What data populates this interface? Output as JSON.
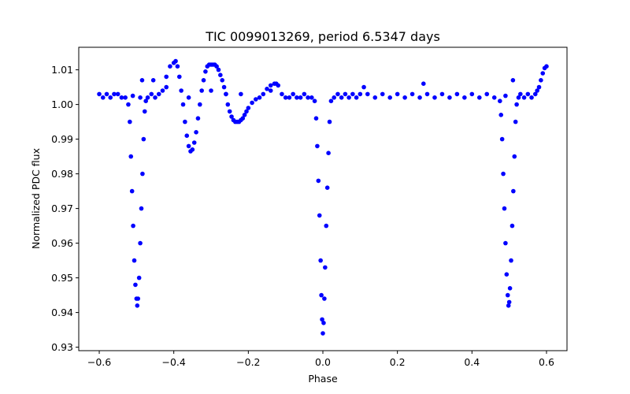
{
  "chart_data": {
    "type": "scatter",
    "title": "TIC 0099013269, period 6.5347 days",
    "xlabel": "Phase",
    "ylabel": "Normalized PDC flux",
    "xlim": [
      -0.655,
      0.655
    ],
    "ylim": [
      0.929,
      1.0165
    ],
    "xticks": [
      -0.6,
      -0.4,
      -0.2,
      0.0,
      0.2,
      0.4,
      0.6
    ],
    "xtick_labels": [
      "−0.6",
      "−0.4",
      "−0.2",
      "0.0",
      "0.2",
      "0.4",
      "0.6"
    ],
    "yticks": [
      0.93,
      0.94,
      0.95,
      0.96,
      0.97,
      0.98,
      0.99,
      1.0,
      1.01
    ],
    "ytick_labels": [
      "0.93",
      "0.94",
      "0.95",
      "0.96",
      "0.97",
      "0.98",
      "0.99",
      "1.00",
      "1.01"
    ],
    "grid": false,
    "series_color": "#0000ff",
    "series": [
      {
        "description": "phase-folded light curve: out-of-eclipse baseline near 1.002, primary eclipse at phase 0 (min ~0.934), secondary eclipses at phase ±0.5 (min ~0.942), plus a systematic oscillation between phase -0.42 and -0.12",
        "points": [
          [
            -0.6,
            1.003
          ],
          [
            -0.59,
            1.002
          ],
          [
            -0.58,
            1.003
          ],
          [
            -0.57,
            1.002
          ],
          [
            -0.56,
            1.003
          ],
          [
            -0.55,
            1.003
          ],
          [
            -0.54,
            1.002
          ],
          [
            -0.53,
            1.002
          ],
          [
            -0.522,
            1.0
          ],
          [
            -0.518,
            0.995
          ],
          [
            -0.515,
            0.985
          ],
          [
            -0.512,
            0.975
          ],
          [
            -0.509,
            0.965
          ],
          [
            -0.506,
            0.955
          ],
          [
            -0.503,
            0.948
          ],
          [
            -0.5,
            0.944
          ],
          [
            -0.498,
            0.942
          ],
          [
            -0.496,
            0.944
          ],
          [
            -0.493,
            0.95
          ],
          [
            -0.49,
            0.96
          ],
          [
            -0.487,
            0.97
          ],
          [
            -0.484,
            0.98
          ],
          [
            -0.481,
            0.99
          ],
          [
            -0.478,
            0.998
          ],
          [
            -0.475,
            1.001
          ],
          [
            -0.49,
            1.002
          ],
          [
            -0.47,
            1.002
          ],
          [
            -0.46,
            1.003
          ],
          [
            -0.45,
            1.002
          ],
          [
            -0.44,
            1.003
          ],
          [
            -0.43,
            1.004
          ],
          [
            -0.42,
            1.008
          ],
          [
            -0.41,
            1.011
          ],
          [
            -0.4,
            1.012
          ],
          [
            -0.395,
            1.0125
          ],
          [
            -0.39,
            1.011
          ],
          [
            -0.385,
            1.008
          ],
          [
            -0.38,
            1.004
          ],
          [
            -0.375,
            1.0
          ],
          [
            -0.37,
            0.995
          ],
          [
            -0.365,
            0.991
          ],
          [
            -0.36,
            0.988
          ],
          [
            -0.355,
            0.9865
          ],
          [
            -0.35,
            0.987
          ],
          [
            -0.345,
            0.989
          ],
          [
            -0.34,
            0.992
          ],
          [
            -0.335,
            0.996
          ],
          [
            -0.33,
            1.0
          ],
          [
            -0.325,
            1.004
          ],
          [
            -0.32,
            1.007
          ],
          [
            -0.315,
            1.0095
          ],
          [
            -0.31,
            1.011
          ],
          [
            -0.305,
            1.0115
          ],
          [
            -0.3,
            1.0115
          ],
          [
            -0.295,
            1.0115
          ],
          [
            -0.29,
            1.0115
          ],
          [
            -0.285,
            1.011
          ],
          [
            -0.28,
            1.01
          ],
          [
            -0.275,
            1.0085
          ],
          [
            -0.27,
            1.007
          ],
          [
            -0.265,
            1.005
          ],
          [
            -0.26,
            1.003
          ],
          [
            -0.255,
            1.0
          ],
          [
            -0.25,
            0.998
          ],
          [
            -0.245,
            0.9965
          ],
          [
            -0.24,
            0.9955
          ],
          [
            -0.235,
            0.995
          ],
          [
            -0.23,
            0.995
          ],
          [
            -0.225,
            0.995
          ],
          [
            -0.22,
            0.9955
          ],
          [
            -0.215,
            0.996
          ],
          [
            -0.21,
            0.997
          ],
          [
            -0.205,
            0.998
          ],
          [
            -0.2,
            0.999
          ],
          [
            -0.19,
            1.0005
          ],
          [
            -0.18,
            1.0015
          ],
          [
            -0.17,
            1.002
          ],
          [
            -0.16,
            1.003
          ],
          [
            -0.15,
            1.0045
          ],
          [
            -0.14,
            1.0055
          ],
          [
            -0.13,
            1.006
          ],
          [
            -0.125,
            1.006
          ],
          [
            -0.12,
            1.0055
          ],
          [
            -0.11,
            1.003
          ],
          [
            -0.1,
            1.002
          ],
          [
            -0.09,
            1.002
          ],
          [
            -0.08,
            1.003
          ],
          [
            -0.07,
            1.002
          ],
          [
            -0.06,
            1.002
          ],
          [
            -0.05,
            1.003
          ],
          [
            -0.04,
            1.002
          ],
          [
            -0.03,
            1.002
          ],
          [
            -0.022,
            1.001
          ],
          [
            -0.018,
            0.996
          ],
          [
            -0.015,
            0.988
          ],
          [
            -0.012,
            0.978
          ],
          [
            -0.009,
            0.968
          ],
          [
            -0.006,
            0.955
          ],
          [
            -0.004,
            0.945
          ],
          [
            -0.002,
            0.938
          ],
          [
            0.0,
            0.934
          ],
          [
            0.002,
            0.937
          ],
          [
            0.004,
            0.944
          ],
          [
            0.006,
            0.953
          ],
          [
            0.009,
            0.965
          ],
          [
            0.012,
            0.976
          ],
          [
            0.015,
            0.986
          ],
          [
            0.018,
            0.995
          ],
          [
            0.022,
            1.001
          ],
          [
            0.03,
            1.002
          ],
          [
            0.04,
            1.003
          ],
          [
            0.05,
            1.002
          ],
          [
            0.06,
            1.003
          ],
          [
            0.07,
            1.002
          ],
          [
            0.08,
            1.003
          ],
          [
            0.09,
            1.002
          ],
          [
            0.1,
            1.003
          ],
          [
            0.12,
            1.003
          ],
          [
            0.14,
            1.002
          ],
          [
            0.16,
            1.003
          ],
          [
            0.18,
            1.002
          ],
          [
            0.2,
            1.003
          ],
          [
            0.22,
            1.002
          ],
          [
            0.24,
            1.003
          ],
          [
            0.26,
            1.002
          ],
          [
            0.28,
            1.003
          ],
          [
            0.3,
            1.002
          ],
          [
            0.32,
            1.003
          ],
          [
            0.34,
            1.002
          ],
          [
            0.36,
            1.003
          ],
          [
            0.38,
            1.002
          ],
          [
            0.4,
            1.003
          ],
          [
            0.42,
            1.002
          ],
          [
            0.44,
            1.003
          ],
          [
            0.46,
            1.002
          ],
          [
            0.475,
            1.001
          ],
          [
            0.478,
            0.997
          ],
          [
            0.481,
            0.99
          ],
          [
            0.484,
            0.98
          ],
          [
            0.487,
            0.97
          ],
          [
            0.49,
            0.96
          ],
          [
            0.493,
            0.951
          ],
          [
            0.496,
            0.945
          ],
          [
            0.498,
            0.942
          ],
          [
            0.5,
            0.943
          ],
          [
            0.502,
            0.947
          ],
          [
            0.505,
            0.955
          ],
          [
            0.508,
            0.965
          ],
          [
            0.511,
            0.975
          ],
          [
            0.514,
            0.985
          ],
          [
            0.517,
            0.995
          ],
          [
            0.52,
            1.0
          ],
          [
            0.525,
            1.002
          ],
          [
            0.53,
            1.003
          ],
          [
            0.54,
            1.002
          ],
          [
            0.55,
            1.003
          ],
          [
            0.56,
            1.002
          ],
          [
            0.57,
            1.003
          ],
          [
            0.575,
            1.004
          ],
          [
            0.58,
            1.005
          ],
          [
            0.585,
            1.007
          ],
          [
            0.59,
            1.009
          ],
          [
            0.595,
            1.0105
          ],
          [
            0.6,
            1.011
          ],
          [
            -0.485,
            1.007
          ],
          [
            -0.455,
            1.007
          ],
          [
            -0.51,
            1.0025
          ],
          [
            0.51,
            1.007
          ],
          [
            0.49,
            1.0025
          ],
          [
            0.27,
            1.006
          ],
          [
            -0.42,
            1.005
          ],
          [
            -0.3,
            1.004
          ],
          [
            -0.22,
            1.003
          ],
          [
            -0.36,
            1.002
          ],
          [
            -0.26,
            1.003
          ],
          [
            -0.14,
            1.004
          ],
          [
            0.11,
            1.005
          ]
        ]
      }
    ]
  }
}
